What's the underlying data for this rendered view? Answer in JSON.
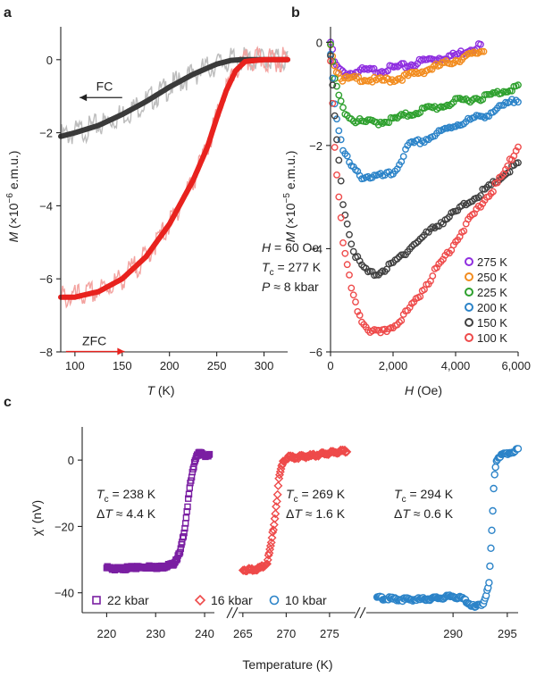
{
  "panels": {
    "a": {
      "label": "a"
    },
    "b": {
      "label": "b"
    },
    "c": {
      "label": "c"
    }
  },
  "chart_data": [
    {
      "panel": "a",
      "type": "line",
      "xlabel_var": "T",
      "xlabel_unit": "(K)",
      "ylabel_pre": "M (×10",
      "ylabel_exp": "−6",
      "ylabel_post": " e.m.u.)",
      "xlim": [
        85,
        325
      ],
      "ylim": [
        -8,
        0.9
      ],
      "xticks": [
        100,
        150,
        200,
        250,
        300
      ],
      "yticks": [
        0,
        -2,
        -4,
        -6,
        -8
      ],
      "xtick_labels": [
        "100",
        "150",
        "200",
        "250",
        "300"
      ],
      "ytick_labels": [
        "0",
        "−2",
        "−4",
        "−6",
        "−8"
      ],
      "series": [
        {
          "name": "FC",
          "color": "#3a3a3a",
          "raw_color": "#bdbdbd",
          "x": [
            85,
            100,
            125,
            150,
            175,
            200,
            225,
            250,
            265,
            275,
            300,
            325
          ],
          "y": [
            -2.1,
            -2.0,
            -1.8,
            -1.5,
            -1.15,
            -0.75,
            -0.4,
            -0.12,
            -0.02,
            0,
            0,
            0
          ]
        },
        {
          "name": "ZFC",
          "color": "#e8221e",
          "raw_color": "#f3a3a0",
          "x": [
            85,
            100,
            125,
            150,
            175,
            200,
            225,
            240,
            250,
            260,
            270,
            280,
            300,
            325
          ],
          "y": [
            -6.5,
            -6.5,
            -6.35,
            -6.0,
            -5.4,
            -4.5,
            -3.3,
            -2.4,
            -1.6,
            -0.85,
            -0.3,
            -0.05,
            0,
            0
          ]
        }
      ],
      "arrows": [
        {
          "label": "FC",
          "from_x": 150,
          "to_x": 105,
          "y": -0.5
        },
        {
          "label": "ZFC",
          "from_x": 100,
          "to_x": 160,
          "y": -7.5
        }
      ],
      "annotation": {
        "line1_var": "H",
        "line1_text": " = 60 Oe",
        "line2_var": "T",
        "line2_sub": "c",
        "line2_text": " = 277 K",
        "line3_var": "P",
        "line3_text": " ≈ 8 kbar"
      }
    },
    {
      "panel": "b",
      "type": "scatter",
      "xlabel_var": "H",
      "xlabel_unit": " (Oe)",
      "ylabel_pre": "M (×10",
      "ylabel_exp": "−5",
      "ylabel_post": " e.m.u.)",
      "xlim": [
        0,
        6000
      ],
      "ylim": [
        -6,
        0.3
      ],
      "xticks": [
        0,
        2000,
        4000,
        6000
      ],
      "yticks": [
        0,
        -2,
        -4,
        -6
      ],
      "xtick_labels": [
        "0",
        "2,000",
        "4,000",
        "6,000"
      ],
      "ytick_labels": [
        "0",
        "−2",
        "−4",
        "−6"
      ],
      "legend_position": "bottom-right",
      "series": [
        {
          "name": "275 K",
          "color": "#8f2ee0",
          "x": [
            0,
            150,
            400,
            700,
            1000,
            1500,
            2000,
            2500,
            3000,
            3500,
            4000,
            4500,
            4800
          ],
          "y": [
            0,
            -0.45,
            -0.6,
            -0.6,
            -0.55,
            -0.55,
            -0.5,
            -0.45,
            -0.35,
            -0.3,
            -0.25,
            -0.12,
            -0.05
          ]
        },
        {
          "name": "250 K",
          "color": "#f28c1f",
          "x": [
            0,
            150,
            400,
            700,
            1000,
            1500,
            2000,
            2500,
            3000,
            3500,
            4000,
            4500,
            4900
          ],
          "y": [
            0,
            -0.5,
            -0.72,
            -0.72,
            -0.7,
            -0.75,
            -0.72,
            -0.65,
            -0.55,
            -0.45,
            -0.35,
            -0.25,
            -0.15
          ]
        },
        {
          "name": "225 K",
          "color": "#2ea02e",
          "x": [
            0,
            150,
            400,
            700,
            1000,
            1500,
            2000,
            2500,
            3000,
            3500,
            4000,
            4500,
            5000,
            5500,
            6000
          ],
          "y": [
            -0.1,
            -0.8,
            -1.3,
            -1.5,
            -1.55,
            -1.55,
            -1.5,
            -1.4,
            -1.3,
            -1.25,
            -1.15,
            -1.1,
            -1.05,
            -0.95,
            -0.85
          ]
        },
        {
          "name": "200 K",
          "color": "#2b83c8",
          "x": [
            0,
            150,
            400,
            700,
            1000,
            1300,
            1600,
            2000,
            2200,
            2500,
            3000,
            3500,
            4000,
            4500,
            5000,
            5500,
            6000
          ],
          "y": [
            -0.2,
            -1.3,
            -2.1,
            -2.45,
            -2.6,
            -2.6,
            -2.6,
            -2.55,
            -2.35,
            -2.0,
            -1.9,
            -1.75,
            -1.6,
            -1.5,
            -1.4,
            -1.25,
            -1.1
          ]
        },
        {
          "name": "150 K",
          "color": "#404040",
          "x": [
            0,
            150,
            400,
            700,
            1000,
            1300,
            1600,
            2000,
            2500,
            3000,
            3500,
            4000,
            4500,
            5000,
            5500,
            6000
          ],
          "y": [
            -0.3,
            -1.6,
            -3.1,
            -4.0,
            -4.35,
            -4.5,
            -4.45,
            -4.3,
            -4.0,
            -3.75,
            -3.5,
            -3.3,
            -3.05,
            -2.85,
            -2.6,
            -2.35
          ]
        },
        {
          "name": "100 K",
          "color": "#ee4a4a",
          "x": [
            0,
            150,
            400,
            700,
            1000,
            1300,
            1600,
            2000,
            2500,
            3000,
            3500,
            4000,
            4500,
            5000,
            5500,
            6000
          ],
          "y": [
            -0.35,
            -2.2,
            -3.9,
            -4.9,
            -5.4,
            -5.6,
            -5.65,
            -5.5,
            -5.2,
            -4.75,
            -4.3,
            -3.85,
            -3.4,
            -3.0,
            -2.6,
            -2.0
          ]
        }
      ]
    },
    {
      "panel": "c",
      "type": "scatter",
      "xlabel": "Temperature (K)",
      "ylabel_pre": "χ′ (nV)",
      "ylim": [
        -46,
        10
      ],
      "yticks": [
        0,
        -20,
        -40
      ],
      "ytick_labels": [
        "0",
        "−20",
        "−40"
      ],
      "segments": [
        {
          "xlim": [
            215,
            242
          ],
          "xticks": [
            220,
            230,
            240
          ],
          "xtick_labels": [
            "220",
            "230",
            "240"
          ]
        },
        {
          "xlim": [
            264.5,
            278
          ],
          "xticks": [
            265,
            270,
            275
          ],
          "xtick_labels": [
            "265",
            "270",
            "275"
          ]
        },
        {
          "xlim": [
            282,
            296
          ],
          "xticks": [
            290,
            295
          ],
          "xtick_labels": [
            "290",
            "295"
          ]
        }
      ],
      "series": [
        {
          "name": "22 kbar",
          "marker": "square",
          "color": "#7a1fa2",
          "x": [
            220,
            222,
            225,
            228,
            231,
            233.5,
            235,
            236,
            237,
            238,
            238.5,
            239,
            240,
            241
          ],
          "y": [
            -32.5,
            -32.8,
            -32.5,
            -32.2,
            -32.3,
            -31.5,
            -28,
            -20,
            -8,
            0,
            1.8,
            2,
            1.5,
            1.3
          ]
        },
        {
          "name": "16 kbar",
          "marker": "diamond",
          "color": "#ee4a4a",
          "x": [
            265,
            266,
            267,
            267.8,
            268.3,
            268.8,
            269.2,
            269.7,
            270.3,
            271,
            272,
            273,
            274,
            275,
            276,
            277
          ],
          "y": [
            -33,
            -33,
            -32.5,
            -31,
            -25,
            -15,
            -5,
            0,
            0.8,
            0.8,
            1.1,
            1.3,
            1.8,
            2.1,
            2.5,
            2.8
          ]
        },
        {
          "name": "10 kbar",
          "marker": "circle",
          "color": "#2b83c8",
          "x": [
            283,
            285,
            287,
            289,
            290,
            291,
            292,
            292.8,
            293.3,
            293.6,
            293.8,
            294,
            294.2,
            294.5,
            295,
            295.5,
            296
          ],
          "y": [
            -41.5,
            -42,
            -42,
            -41.5,
            -41,
            -42,
            -44.5,
            -43,
            -38,
            -20,
            -5,
            0,
            1,
            1.5,
            2,
            2.5,
            3
          ]
        }
      ],
      "annotations": [
        {
          "tc": " = 238 K",
          "dt": " ≈ 4.4 K"
        },
        {
          "tc": " = 269 K",
          "dt": " ≈ 1.6 K"
        },
        {
          "tc": " = 294 K",
          "dt": " ≈ 0.6 K"
        }
      ]
    }
  ]
}
